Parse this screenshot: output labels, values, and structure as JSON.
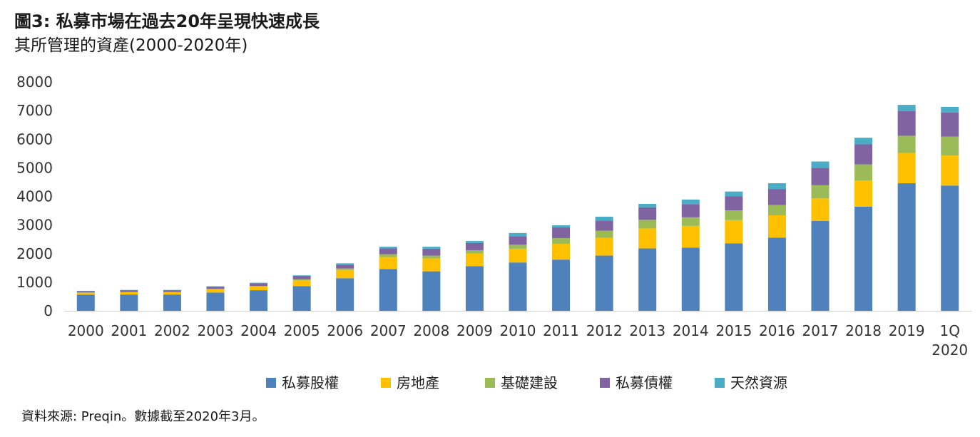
{
  "title": "圖3: 私募市場在過去20年呈現快速成長",
  "subtitle": "其所管理的資產(2000-2020年)",
  "source": "資料來源: Preqin。數據截至2020年3月。",
  "chart_data": {
    "type": "bar",
    "stacked": true,
    "categories": [
      "2000",
      "2001",
      "2002",
      "2003",
      "2004",
      "2005",
      "2006",
      "2007",
      "2008",
      "2009",
      "2010",
      "2011",
      "2012",
      "2013",
      "2014",
      "2015",
      "2016",
      "2017",
      "2018",
      "2019",
      "1Q 2020"
    ],
    "ylim": [
      0,
      8000
    ],
    "yticks": [
      0,
      1000,
      2000,
      3000,
      4000,
      5000,
      6000,
      7000,
      8000
    ],
    "grid": false,
    "legend_position": "bottom",
    "series": [
      {
        "name": "私募股權",
        "color": "#4f81bd",
        "values": [
          560,
          570,
          570,
          640,
          720,
          860,
          1140,
          1460,
          1380,
          1560,
          1690,
          1790,
          1930,
          2180,
          2210,
          2360,
          2560,
          3140,
          3640,
          4460,
          4380
        ]
      },
      {
        "name": "房地產",
        "color": "#ffc000",
        "values": [
          70,
          80,
          80,
          110,
          130,
          210,
          290,
          420,
          450,
          440,
          480,
          550,
          620,
          700,
          760,
          810,
          780,
          790,
          920,
          1060,
          1050
        ]
      },
      {
        "name": "基礎建設",
        "color": "#9bbb59",
        "values": [
          10,
          10,
          10,
          20,
          20,
          30,
          50,
          100,
          100,
          120,
          140,
          200,
          250,
          300,
          300,
          340,
          360,
          460,
          560,
          600,
          660
        ]
      },
      {
        "name": "私募債權",
        "color": "#8064a2",
        "values": [
          50,
          60,
          60,
          70,
          90,
          120,
          130,
          200,
          240,
          250,
          300,
          380,
          360,
          440,
          460,
          490,
          560,
          610,
          700,
          860,
          840
        ]
      },
      {
        "name": "天然資源",
        "color": "#4bacc6",
        "values": [
          10,
          10,
          10,
          20,
          20,
          20,
          50,
          60,
          70,
          70,
          110,
          70,
          130,
          120,
          160,
          170,
          200,
          220,
          230,
          220,
          200
        ]
      }
    ]
  }
}
